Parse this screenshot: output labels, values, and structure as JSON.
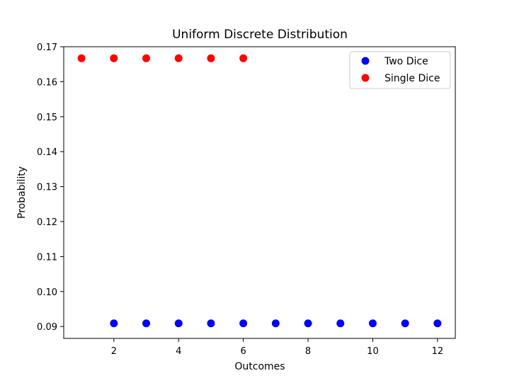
{
  "chart_data": {
    "type": "scatter",
    "title": "Uniform Discrete Distribution",
    "xlabel": "Outcomes",
    "ylabel": "Probability",
    "xlim": [
      0.45,
      12.55
    ],
    "ylim": [
      0.0866,
      0.17
    ],
    "xticks": [
      2,
      4,
      6,
      8,
      10,
      12
    ],
    "yticks": [
      0.09,
      0.1,
      0.11,
      0.12,
      0.13,
      0.14,
      0.15,
      0.16,
      0.17
    ],
    "ytick_labels": [
      "0.09",
      "0.10",
      "0.11",
      "0.12",
      "0.13",
      "0.14",
      "0.15",
      "0.16",
      "0.17"
    ],
    "grid": false,
    "legend_position": "top-right",
    "series": [
      {
        "name": "Two Dice",
        "color": "#0000ff",
        "x": [
          2,
          3,
          4,
          5,
          6,
          7,
          8,
          9,
          10,
          11,
          12
        ],
        "y": [
          0.0909,
          0.0909,
          0.0909,
          0.0909,
          0.0909,
          0.0909,
          0.0909,
          0.0909,
          0.0909,
          0.0909,
          0.0909
        ]
      },
      {
        "name": "Single Dice",
        "color": "#ff0000",
        "x": [
          1,
          2,
          3,
          4,
          5,
          6
        ],
        "y": [
          0.1667,
          0.1667,
          0.1667,
          0.1667,
          0.1667,
          0.1667
        ]
      }
    ]
  }
}
